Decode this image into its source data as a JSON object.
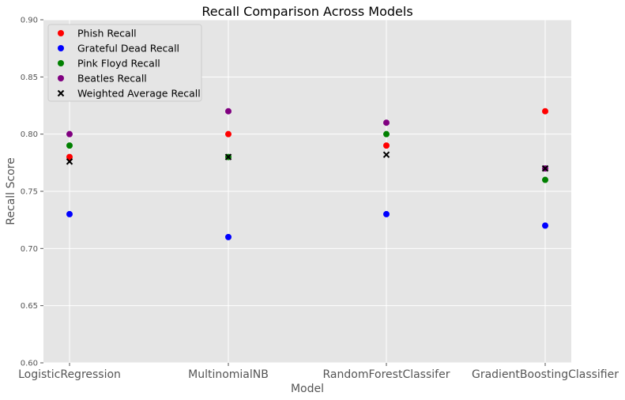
{
  "chart_data": {
    "type": "scatter",
    "title": "Recall Comparison Across Models",
    "xlabel": "Model",
    "ylabel": "Recall Score",
    "categories": [
      "LogisticRegression",
      "MultinomialNB",
      "RandomForestClassifer",
      "GradientBoostingClassifier"
    ],
    "ylim": [
      0.6,
      0.9
    ],
    "yticks": [
      "0.60",
      "0.65",
      "0.70",
      "0.75",
      "0.80",
      "0.85",
      "0.90"
    ],
    "grid": true,
    "legend_position": "top-left",
    "series": [
      {
        "name": "Phish Recall",
        "color": "#ff0000",
        "marker": "circle",
        "values": [
          0.78,
          0.8,
          0.79,
          0.82
        ]
      },
      {
        "name": "Grateful Dead Recall",
        "color": "#0000ff",
        "marker": "circle",
        "values": [
          0.73,
          0.71,
          0.73,
          0.72
        ]
      },
      {
        "name": "Pink Floyd Recall",
        "color": "#008000",
        "marker": "circle",
        "values": [
          0.79,
          0.78,
          0.8,
          0.76
        ]
      },
      {
        "name": "Beatles Recall",
        "color": "#800080",
        "marker": "circle",
        "values": [
          0.8,
          0.82,
          0.81,
          0.77
        ]
      },
      {
        "name": "Weighted Average Recall",
        "color": "#000000",
        "marker": "x",
        "values": [
          0.776,
          0.78,
          0.782,
          0.77
        ]
      }
    ]
  }
}
